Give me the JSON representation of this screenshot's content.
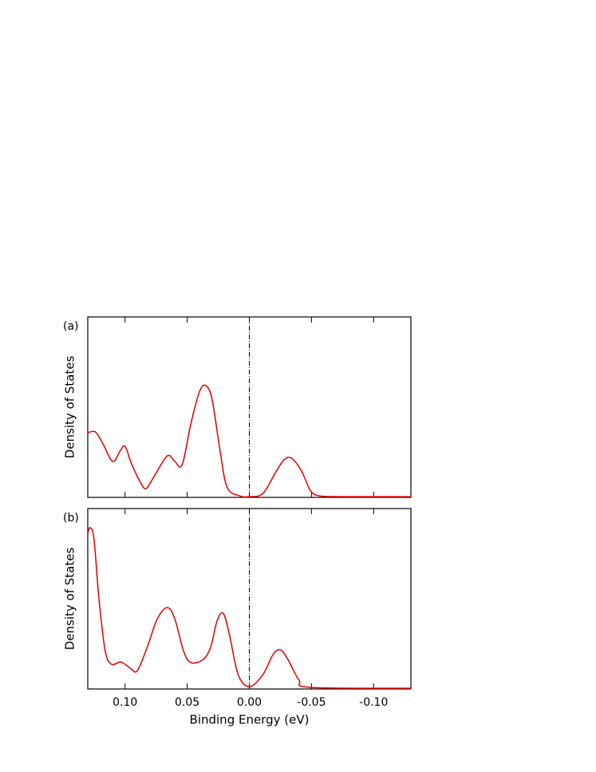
{
  "chart_data": [
    {
      "type": "line",
      "title": "(a)",
      "ylabel": "Density of States",
      "color": "#e00000",
      "xlim": [
        0.13,
        -0.13
      ],
      "ylim": [
        0,
        1
      ],
      "xticks": [
        0.1,
        0.05,
        0,
        -0.05,
        -0.1
      ],
      "show_xticklabels": false,
      "vline": 0,
      "x": [
        0.13,
        0.124,
        0.118,
        0.11,
        0.104,
        0.1,
        0.095,
        0.088,
        0.083,
        0.076,
        0.066,
        0.06,
        0.054,
        0.047,
        0.04,
        0.035,
        0.03,
        0.024,
        0.018,
        0.008,
        0.0,
        -0.011,
        -0.021,
        -0.028,
        -0.034,
        -0.042,
        -0.049,
        -0.056,
        -0.075,
        -0.13
      ],
      "values": [
        0.358,
        0.363,
        0.3,
        0.199,
        0.257,
        0.283,
        0.19,
        0.088,
        0.049,
        0.124,
        0.23,
        0.199,
        0.181,
        0.41,
        0.588,
        0.619,
        0.544,
        0.279,
        0.058,
        0.009,
        0.004,
        0.022,
        0.137,
        0.208,
        0.217,
        0.146,
        0.04,
        0.009,
        0.004,
        0.004
      ]
    },
    {
      "type": "line",
      "title": "(b)",
      "ylabel": "Density of States",
      "xlabel": "Binding Energy (eV)",
      "color": "#e00000",
      "xlim": [
        0.13,
        -0.13
      ],
      "ylim": [
        0,
        1
      ],
      "xticks": [
        {
          "value": 0.1,
          "label": "0.10"
        },
        {
          "value": 0.05,
          "label": "0.05"
        },
        {
          "value": 0,
          "label": "0.00"
        },
        {
          "value": -0.05,
          "label": "-0.05"
        },
        {
          "value": -0.1,
          "label": "-0.10"
        }
      ],
      "show_xticklabels": true,
      "vline": 0,
      "x": [
        0.13,
        0.128,
        0.125,
        0.121,
        0.116,
        0.111,
        0.104,
        0.1,
        0.095,
        0.09,
        0.082,
        0.074,
        0.066,
        0.06,
        0.053,
        0.047,
        0.037,
        0.031,
        0.026,
        0.021,
        0.016,
        0.009,
        0.0,
        -0.011,
        -0.019,
        -0.025,
        -0.031,
        -0.04,
        -0.049,
        -0.13
      ],
      "values": [
        0.863,
        0.894,
        0.832,
        0.5,
        0.212,
        0.137,
        0.15,
        0.137,
        0.111,
        0.102,
        0.235,
        0.389,
        0.451,
        0.389,
        0.212,
        0.146,
        0.164,
        0.235,
        0.376,
        0.42,
        0.301,
        0.08,
        0.013,
        0.08,
        0.19,
        0.217,
        0.164,
        0.049,
        0.009,
        0.004
      ]
    }
  ]
}
